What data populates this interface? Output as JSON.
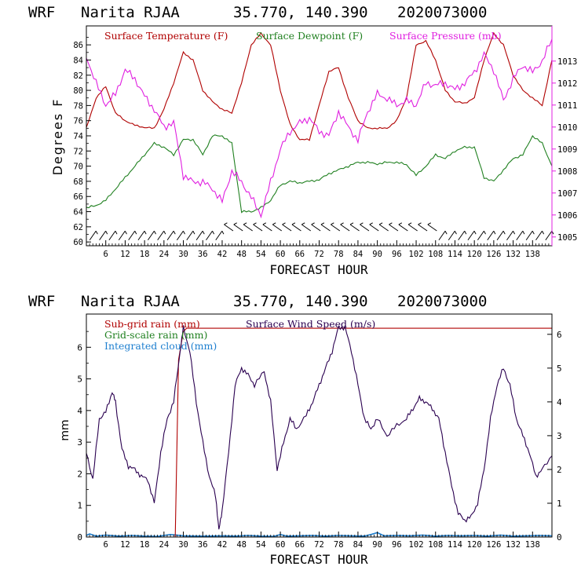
{
  "colors": {
    "temperature": "#b00000",
    "dewpoint": "#208020",
    "pressure": "#e020e0",
    "subgrid_rain": "#b00000",
    "grid_rain": "#208020",
    "cloud": "#2080d0",
    "wind": "#2a0050",
    "axis": "#000000"
  },
  "chart_data": [
    {
      "type": "line",
      "header": {
        "model": "WRF",
        "station": "Narita RJAA",
        "coords": "35.770, 140.390",
        "init": "2020073000"
      },
      "legend": [
        {
          "label": "Surface Temperature (F)",
          "color_key": "temperature"
        },
        {
          "label": "Surface Dewpoint (F)",
          "color_key": "dewpoint"
        },
        {
          "label": "Surface Pressure (mb)",
          "color_key": "pressure"
        }
      ],
      "xlabel": "FORECAST HOUR",
      "ylabel": "Degrees F",
      "xlim": [
        0,
        144
      ],
      "ylim_left": [
        59.5,
        88.5
      ],
      "ylim_right": [
        1004.6,
        1014.6
      ],
      "xticks": [
        "6",
        "12",
        "18",
        "24",
        "30",
        "36",
        "42",
        "48",
        "54",
        "60",
        "66",
        "72",
        "78",
        "84",
        "90",
        "96",
        "102",
        "108",
        "114",
        "120",
        "126",
        "132",
        "138"
      ],
      "yticks_left": [
        "60",
        "62",
        "64",
        "66",
        "68",
        "70",
        "72",
        "74",
        "76",
        "78",
        "80",
        "82",
        "84",
        "86"
      ],
      "yticks_right": [
        "1005",
        "1006",
        "1007",
        "1008",
        "1009",
        "1010",
        "1011",
        "1012",
        "1013"
      ],
      "series": [
        {
          "name": "Surface Temperature (F)",
          "axis": "left",
          "color_key": "temperature",
          "x": [
            0,
            3,
            6,
            9,
            12,
            15,
            18,
            21,
            24,
            27,
            30,
            33,
            36,
            39,
            42,
            45,
            48,
            51,
            54,
            57,
            60,
            63,
            66,
            69,
            72,
            75,
            78,
            81,
            84,
            87,
            90,
            93,
            96,
            99,
            102,
            105,
            108,
            111,
            114,
            117,
            120,
            123,
            126,
            129,
            132,
            135,
            138,
            141,
            144
          ],
          "y": [
            75,
            79,
            80.5,
            77,
            76,
            75.4,
            75.1,
            75,
            77.5,
            81,
            85,
            84,
            80,
            78.5,
            77.5,
            77,
            81,
            86,
            87.5,
            86,
            80,
            75.5,
            73.5,
            73.5,
            78,
            82.5,
            83,
            79,
            76,
            75,
            75,
            75,
            76,
            79,
            86,
            86.5,
            84,
            80,
            78.5,
            78.3,
            79,
            84,
            87.5,
            86,
            82,
            80,
            79,
            78,
            84
          ]
        },
        {
          "name": "Surface Dewpoint (F)",
          "axis": "left",
          "color_key": "dewpoint",
          "x": [
            0,
            3,
            6,
            9,
            12,
            15,
            18,
            21,
            24,
            27,
            30,
            33,
            36,
            39,
            42,
            45,
            48,
            51,
            54,
            57,
            60,
            63,
            66,
            69,
            72,
            75,
            78,
            81,
            84,
            87,
            90,
            93,
            96,
            99,
            102,
            105,
            108,
            111,
            114,
            117,
            120,
            123,
            126,
            129,
            132,
            135,
            138,
            141,
            144
          ],
          "y": [
            64.5,
            64.8,
            65.5,
            67,
            68.5,
            70,
            71.5,
            73,
            72.5,
            71.5,
            73.5,
            73.5,
            71.5,
            74,
            74,
            73,
            64,
            64,
            64.5,
            65.5,
            67.5,
            68,
            67.8,
            68,
            68.2,
            69,
            69.5,
            70,
            70.5,
            70.5,
            70.3,
            70.5,
            70.5,
            70.2,
            68.8,
            70,
            71.5,
            71,
            72,
            72.5,
            72.5,
            68.5,
            68,
            69.5,
            71,
            71.5,
            74,
            73,
            70
          ]
        },
        {
          "name": "Surface Pressure (mb)",
          "axis": "right",
          "color_key": "pressure",
          "x": [
            0,
            3,
            6,
            9,
            12,
            15,
            18,
            21,
            24,
            27,
            30,
            33,
            36,
            39,
            42,
            45,
            48,
            51,
            54,
            57,
            60,
            63,
            66,
            69,
            72,
            75,
            78,
            81,
            84,
            87,
            90,
            93,
            96,
            99,
            102,
            105,
            108,
            111,
            114,
            117,
            120,
            123,
            126,
            129,
            132,
            135,
            138,
            141,
            144
          ],
          "y": [
            1013.2,
            1012,
            1011,
            1011.5,
            1012.6,
            1012.2,
            1011.4,
            1010.8,
            1010,
            1010.2,
            1007.8,
            1007.5,
            1007.5,
            1007.2,
            1006.6,
            1008,
            1007.5,
            1006.8,
            1006,
            1007.5,
            1009,
            1009.8,
            1010.2,
            1010.4,
            1009.8,
            1009.6,
            1010.7,
            1010,
            1009.4,
            1010.7,
            1011.5,
            1011.3,
            1011,
            1011.2,
            1011,
            1012,
            1011.9,
            1012,
            1011.7,
            1012,
            1012.5,
            1013.3,
            1012.6,
            1011.2,
            1012.2,
            1012.8,
            1012.5,
            1013,
            1014
          ]
        }
      ],
      "wind_barbs": {
        "x": [
          2,
          5,
          8,
          11,
          14,
          17,
          20,
          23,
          26,
          29,
          32,
          35,
          38,
          41,
          44,
          47,
          50,
          53,
          56,
          59,
          62,
          65,
          68,
          71,
          74,
          77,
          80,
          83,
          86,
          89,
          92,
          95,
          98,
          101,
          104,
          107,
          110,
          113,
          116,
          119,
          122,
          125,
          128,
          131,
          134,
          137,
          140,
          143
        ]
      }
    },
    {
      "type": "line",
      "header": {
        "model": "WRF",
        "station": "Narita RJAA",
        "coords": "35.770, 140.390",
        "init": "2020073000"
      },
      "legend": [
        {
          "label": "Sub-grid rain (mm)",
          "color_key": "subgrid_rain"
        },
        {
          "label": "Surface Wind Speed (m/s)",
          "color_key": "wind"
        },
        {
          "label": "Grid-scale rain (mm)",
          "color_key": "grid_rain"
        },
        {
          "label": "Integrated cloud (mm)",
          "color_key": "cloud"
        }
      ],
      "xlabel": "FORECAST HOUR",
      "ylabel": "mm",
      "xlim": [
        0,
        144
      ],
      "ylim_left": [
        0,
        7.05
      ],
      "ylim_right": [
        0,
        6.6
      ],
      "xticks": [
        "6",
        "12",
        "18",
        "24",
        "30",
        "36",
        "42",
        "48",
        "54",
        "60",
        "66",
        "72",
        "78",
        "84",
        "90",
        "96",
        "102",
        "108",
        "114",
        "120",
        "126",
        "132",
        "138"
      ],
      "yticks_left": [
        "0",
        "1",
        "2",
        "3",
        "4",
        "5",
        "6"
      ],
      "yticks_right": [
        "0",
        "1",
        "2",
        "3",
        "4",
        "5",
        "6"
      ],
      "series": [
        {
          "name": "Sub-grid rain (mm)",
          "axis": "left",
          "color_key": "subgrid_rain",
          "x": [
            0,
            27.5,
            28.5,
            30,
            31,
            144
          ],
          "y": [
            0,
            0,
            5.6,
            6.5,
            6.6,
            6.6
          ]
        },
        {
          "name": "Surface Wind Speed (m/s)",
          "axis": "right",
          "color_key": "wind",
          "x": [
            0,
            2,
            4,
            6,
            8,
            9,
            11,
            13,
            15,
            17,
            19,
            21,
            23,
            25,
            27,
            29,
            30,
            32,
            34,
            36,
            38,
            40,
            41,
            42,
            44,
            46,
            48,
            50,
            52,
            55,
            57,
            59,
            61,
            63,
            65,
            68,
            70,
            72,
            74,
            76,
            78,
            80,
            82,
            84,
            86,
            88,
            90,
            93,
            96,
            99,
            101,
            103,
            105,
            107,
            109,
            111,
            113,
            115,
            117,
            119,
            121,
            123,
            125,
            127,
            129,
            131,
            133,
            135,
            137,
            139,
            141,
            144
          ],
          "y": [
            2.5,
            1.7,
            3.5,
            3.7,
            4.3,
            4.0,
            2.6,
            2.1,
            2.0,
            1.8,
            1.7,
            1.0,
            2.5,
            3.5,
            4.0,
            5.5,
            6.2,
            5.5,
            4.0,
            2.8,
            1.8,
            1.2,
            0.2,
            0.8,
            2.5,
            4.5,
            5.0,
            4.8,
            4.5,
            4.9,
            4.0,
            2.0,
            2.8,
            3.5,
            3.2,
            3.6,
            4.0,
            4.5,
            5.0,
            5.5,
            6.2,
            6.2,
            5.5,
            4.5,
            3.5,
            3.2,
            3.5,
            3.0,
            3.3,
            3.5,
            3.8,
            4.1,
            4.0,
            3.8,
            3.5,
            2.5,
            1.5,
            0.7,
            0.5,
            0.6,
            1.0,
            2.0,
            3.5,
            4.5,
            5.0,
            4.5,
            3.5,
            3.0,
            2.5,
            1.8,
            2.0,
            2.4
          ]
        },
        {
          "name": "Grid-scale rain (mm)",
          "axis": "left",
          "color_key": "grid_rain",
          "x": [
            0,
            144
          ],
          "y": [
            0,
            0
          ]
        },
        {
          "name": "Integrated cloud (mm)",
          "axis": "left",
          "color_key": "cloud",
          "x": [
            0,
            1,
            3,
            6,
            10,
            14,
            18,
            22,
            26,
            28,
            30,
            34,
            38,
            42,
            46,
            50,
            54,
            58,
            60,
            62,
            66,
            70,
            74,
            78,
            82,
            86,
            88,
            90,
            92,
            96,
            100,
            104,
            108,
            112,
            116,
            120,
            124,
            128,
            132,
            136,
            140,
            144
          ],
          "y": [
            0.05,
            0.1,
            0.03,
            0.06,
            0.03,
            0.05,
            0.03,
            0.02,
            0.08,
            0.06,
            0.04,
            0.03,
            0.03,
            0.04,
            0.03,
            0.05,
            0.03,
            0.02,
            0.08,
            0.03,
            0.04,
            0.05,
            0.03,
            0.05,
            0.04,
            0.03,
            0.08,
            0.14,
            0.04,
            0.05,
            0.04,
            0.06,
            0.03,
            0.05,
            0.04,
            0.05,
            0.03,
            0.06,
            0.03,
            0.04,
            0.05,
            0.04
          ]
        }
      ]
    }
  ]
}
